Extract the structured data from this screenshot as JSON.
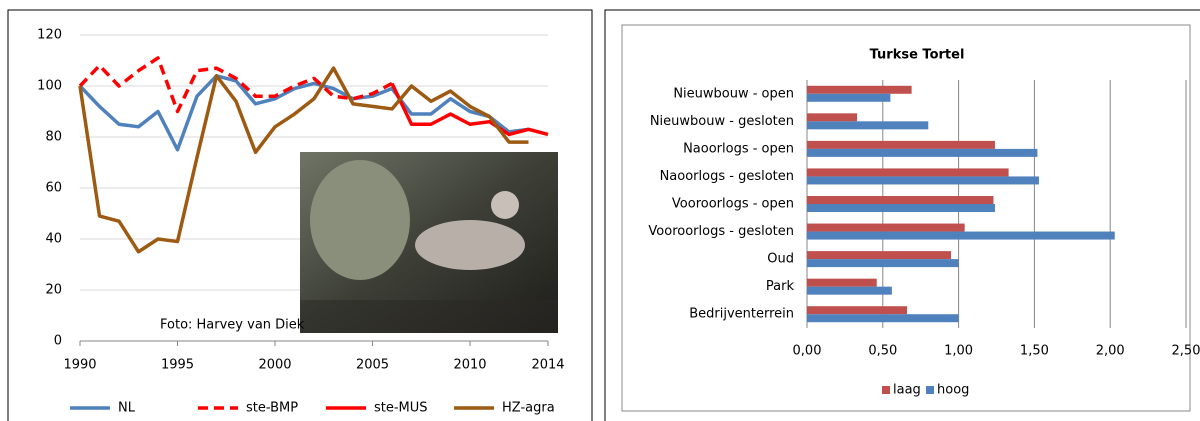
{
  "chart_data": [
    {
      "type": "line",
      "annotation": "Foto: Harvey van Diek",
      "x": [
        1990,
        1991,
        1992,
        1993,
        1994,
        1995,
        1996,
        1997,
        1998,
        1999,
        2000,
        2001,
        2002,
        2003,
        2004,
        2005,
        2006,
        2007,
        2008,
        2009,
        2010,
        2011,
        2012,
        2013,
        2014
      ],
      "xlim": [
        1990,
        2014
      ],
      "xticks": [
        1990,
        1995,
        2000,
        2005,
        2010,
        2014
      ],
      "ylim": [
        0,
        120
      ],
      "yticks": [
        0,
        20,
        40,
        60,
        80,
        100,
        120
      ],
      "grid": true,
      "legend": "bottom",
      "series": [
        {
          "name": "NL",
          "color": "#4f81bd",
          "dashed": false,
          "values": [
            100,
            92,
            85,
            84,
            90,
            75,
            96,
            104,
            102,
            93,
            95,
            99,
            101,
            99,
            95,
            96,
            99,
            89,
            89,
            95,
            90,
            88,
            82,
            83,
            null
          ]
        },
        {
          "name": "ste-BMP",
          "color": "#ff0000",
          "dashed": true,
          "values": [
            100,
            108,
            100,
            106,
            111,
            90,
            106,
            107,
            103,
            96,
            96,
            100,
            103,
            96,
            95,
            97,
            101,
            null,
            null,
            null,
            null,
            null,
            null,
            null,
            null
          ]
        },
        {
          "name": "ste-MUS",
          "color": "#ff0000",
          "dashed": false,
          "values": [
            null,
            null,
            null,
            null,
            null,
            null,
            null,
            null,
            null,
            null,
            null,
            null,
            null,
            null,
            null,
            null,
            101,
            85,
            85,
            89,
            85,
            86,
            81,
            83,
            81
          ]
        },
        {
          "name": "HZ-agra",
          "color": "#9c5a12",
          "dashed": false,
          "values": [
            100,
            49,
            47,
            35,
            40,
            39,
            72,
            104,
            94,
            74,
            84,
            89,
            95,
            107,
            93,
            92,
            91,
            100,
            94,
            98,
            92,
            88,
            78,
            78,
            null
          ]
        }
      ]
    },
    {
      "type": "bar",
      "orientation": "horizontal",
      "title": "Turkse Tortel",
      "categories": [
        "Nieuwbouw - open",
        "Nieuwbouw - gesloten",
        "Naoorlogs - open",
        "Naoorlogs - gesloten",
        "Vooroorlogs - open",
        "Vooroorlogs - gesloten",
        "Oud",
        "Park",
        "Bedrijventerrein"
      ],
      "xlim": [
        0,
        2.5
      ],
      "xticks": [
        {
          "value": 0,
          "label": "0,00"
        },
        {
          "value": 0.5,
          "label": "0,50"
        },
        {
          "value": 1,
          "label": "1,00"
        },
        {
          "value": 1.5,
          "label": "1,50"
        },
        {
          "value": 2,
          "label": "2,00"
        },
        {
          "value": 2.5,
          "label": "2,50"
        }
      ],
      "grid": true,
      "legend": "bottom",
      "series": [
        {
          "name": "laag",
          "color": "#c0504d",
          "values": [
            0.69,
            0.33,
            1.24,
            1.33,
            1.23,
            1.04,
            0.95,
            0.46,
            0.66
          ]
        },
        {
          "name": "hoog",
          "color": "#4f81bd",
          "values": [
            0.55,
            0.8,
            1.52,
            1.53,
            1.24,
            2.03,
            1.0,
            0.56,
            1.0
          ]
        }
      ]
    }
  ]
}
